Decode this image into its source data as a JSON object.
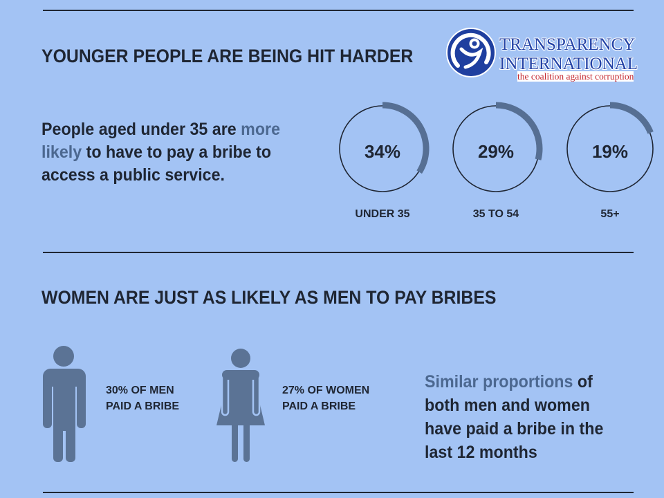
{
  "colors": {
    "background": "#a3c3f4",
    "text": "#1f2633",
    "highlight_text": "#4c6890",
    "ring_arc": "#566f93",
    "figure_icon": "#5b7395",
    "logo_blue": "#2443a6",
    "logo_tagline_red": "#c4262e",
    "logo_emblem": "#1f3f9f"
  },
  "logo": {
    "icon": "transparency-international-emblem-icon",
    "name_line1": "TRANSPARENCY",
    "name_line2": "INTERNATIONAL",
    "tagline": "the coalition against corruption"
  },
  "age_section": {
    "text": {
      "line1": "People aged under 35 are",
      "line1_highlight": "more",
      "line2_highlight": "likely",
      "line2": "to have to pay a bribe to",
      "line3": "access a public service."
    }
  },
  "chart_data": {
    "type": "pie",
    "title": "YOUNGER PEOPLE ARE BEING HIT HARDER",
    "categories": [
      "UNDER 35",
      "35 TO 54",
      "55+"
    ],
    "values": [
      34,
      29,
      19
    ],
    "value_labels": [
      "34%",
      "29%",
      "19%"
    ]
  },
  "gender_section": {
    "heading": "WOMEN ARE JUST AS LIKELY AS MEN TO PAY BRIBES",
    "men": {
      "icon": "man-icon",
      "line1": "30% OF MEN",
      "line2": "PAID A BRIBE"
    },
    "women": {
      "icon": "woman-icon",
      "line1": "27% OF WOMEN",
      "line2": "PAID A BRIBE"
    },
    "text": {
      "line1_highlight": "Similar proportions",
      "line1": "of",
      "line2": "both men and women",
      "line3": "have paid a bribe in the",
      "line4": "last 12 months"
    }
  }
}
